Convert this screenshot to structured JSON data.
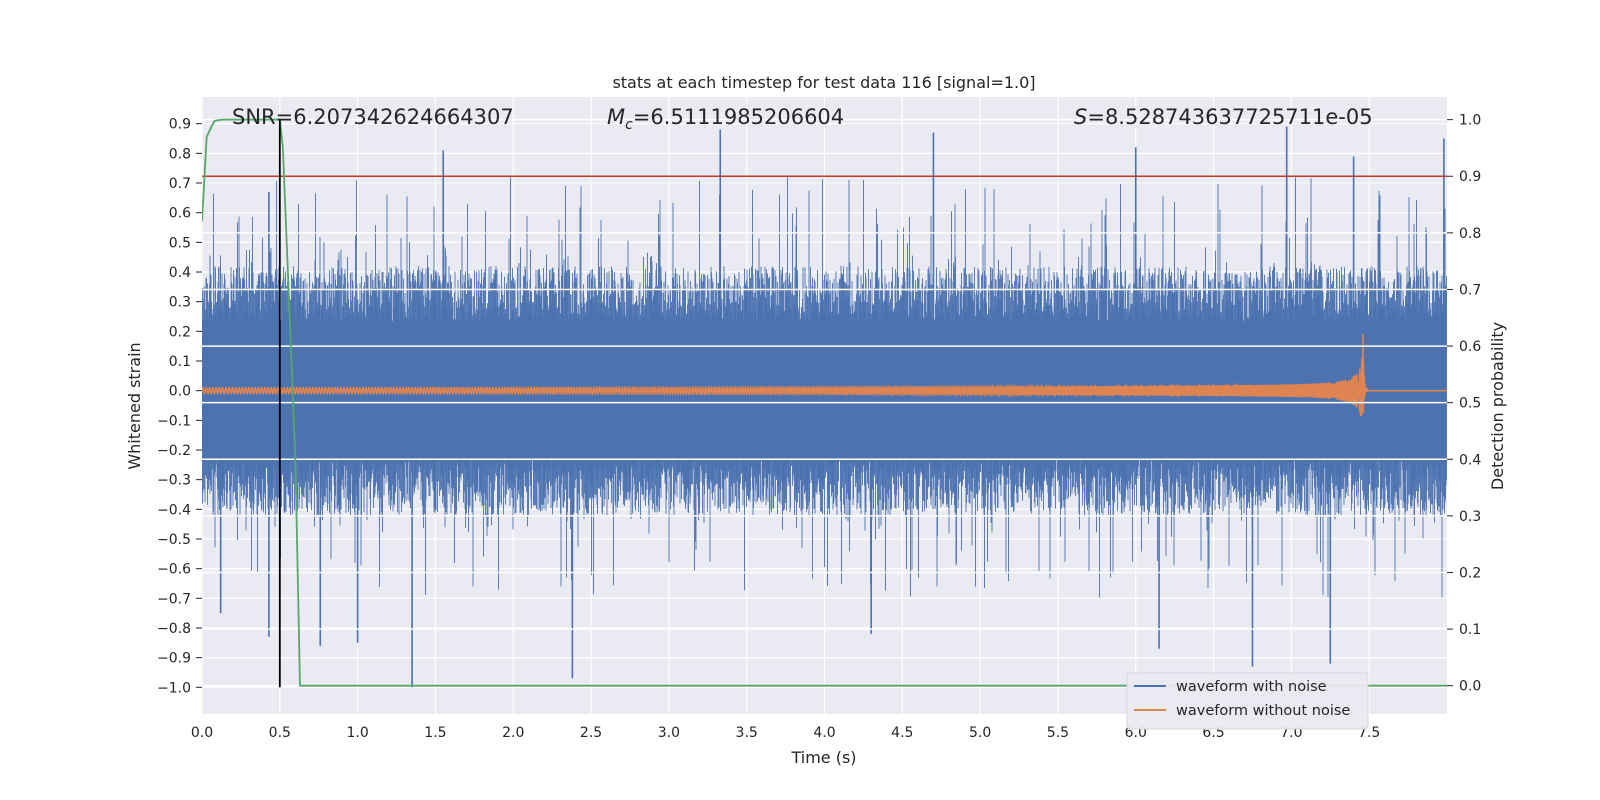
{
  "chart_data": {
    "type": "line",
    "title": "stats at each timestep for test data 116 [signal=1.0]",
    "xlabel": "Time (s)",
    "ylabel": "Whitened strain",
    "y2label": "Detection probability",
    "xlim": [
      0.0,
      8.0
    ],
    "ylim": [
      -1.09,
      0.99
    ],
    "y2lim": [
      -0.05,
      1.04
    ],
    "xticks": [
      "0.0",
      "0.5",
      "1.0",
      "1.5",
      "2.0",
      "2.5",
      "3.0",
      "3.5",
      "4.0",
      "4.5",
      "5.0",
      "5.5",
      "6.0",
      "6.5",
      "7.0",
      "7.5"
    ],
    "xtick_values": [
      0.0,
      0.5,
      1.0,
      1.5,
      2.0,
      2.5,
      3.0,
      3.5,
      4.0,
      4.5,
      5.0,
      5.5,
      6.0,
      6.5,
      7.0,
      7.5
    ],
    "yticks": [
      "0.9",
      "0.8",
      "0.7",
      "0.6",
      "0.5",
      "0.4",
      "0.3",
      "0.2",
      "0.1",
      "0.0",
      "−0.1",
      "−0.2",
      "−0.3",
      "−0.4",
      "−0.5",
      "−0.6",
      "−0.7",
      "−0.8",
      "−0.9",
      "−1.0"
    ],
    "ytick_values": [
      0.9,
      0.8,
      0.7,
      0.6,
      0.5,
      0.4,
      0.3,
      0.2,
      0.1,
      0.0,
      -0.1,
      -0.2,
      -0.3,
      -0.4,
      -0.5,
      -0.6,
      -0.7,
      -0.8,
      -0.9,
      -1.0
    ],
    "y2ticks": [
      "1.0",
      "0.9",
      "0.8",
      "0.7",
      "0.6",
      "0.5",
      "0.4",
      "0.3",
      "0.2",
      "0.1",
      "0.0"
    ],
    "y2tick_values": [
      1.0,
      0.9,
      0.8,
      0.7,
      0.6,
      0.5,
      0.4,
      0.3,
      0.2,
      0.1,
      0.0
    ],
    "annotations": [
      {
        "text": "SNR=6.207342624664307",
        "x": 0.2,
        "y": 0.915
      },
      {
        "prefix": "M",
        "sub": "c",
        "text": "=6.5111985206604",
        "x": 2.6,
        "y": 0.915
      },
      {
        "prefix": "S",
        "text": "=8.528743637725711e-05",
        "x": 5.6,
        "y": 0.915
      }
    ],
    "threshold_line": {
      "y2": 0.9,
      "color": "#c0392b"
    },
    "vertical_marker": {
      "x": 0.5,
      "y_from": -1.0,
      "y_to": 0.9,
      "color": "#000000"
    },
    "legend": {
      "position": "lower-right",
      "entries": [
        {
          "label": "waveform with noise",
          "color": "#4c72b0"
        },
        {
          "label": "waveform without noise",
          "color": "#dd8452"
        }
      ]
    },
    "series": [
      {
        "name": "waveform with noise",
        "color": "#4c72b0",
        "kind": "noise",
        "typical_envelope": 0.42,
        "peaks_up": [
          [
            0.43,
            0.67
          ],
          [
            1.55,
            0.81
          ],
          [
            3.33,
            0.88
          ],
          [
            4.7,
            0.87
          ],
          [
            6.0,
            0.82
          ],
          [
            6.97,
            0.89
          ],
          [
            7.4,
            0.79
          ],
          [
            7.98,
            0.85
          ]
        ],
        "peaks_down": [
          [
            0.12,
            -0.75
          ],
          [
            0.43,
            -0.83
          ],
          [
            0.76,
            -0.86
          ],
          [
            1.0,
            -0.85
          ],
          [
            1.35,
            -1.0
          ],
          [
            2.38,
            -0.97
          ],
          [
            4.3,
            -0.82
          ],
          [
            6.15,
            -0.87
          ],
          [
            6.75,
            -0.93
          ],
          [
            7.25,
            -0.92
          ]
        ]
      },
      {
        "name": "waveform without noise",
        "color": "#dd8452",
        "kind": "chirp",
        "merger_time": 7.46,
        "merger_amplitude": 0.19,
        "start_amplitude": 0.01
      },
      {
        "name": "detection probability",
        "color": "#55a868",
        "axis": "y2",
        "x": [
          0.0,
          0.03,
          0.08,
          0.13,
          0.5,
          0.52,
          0.6,
          0.63,
          8.0
        ],
        "y": [
          0.82,
          0.97,
          0.998,
          1.0,
          1.0,
          0.95,
          0.4,
          0.0,
          0.0
        ]
      }
    ]
  }
}
